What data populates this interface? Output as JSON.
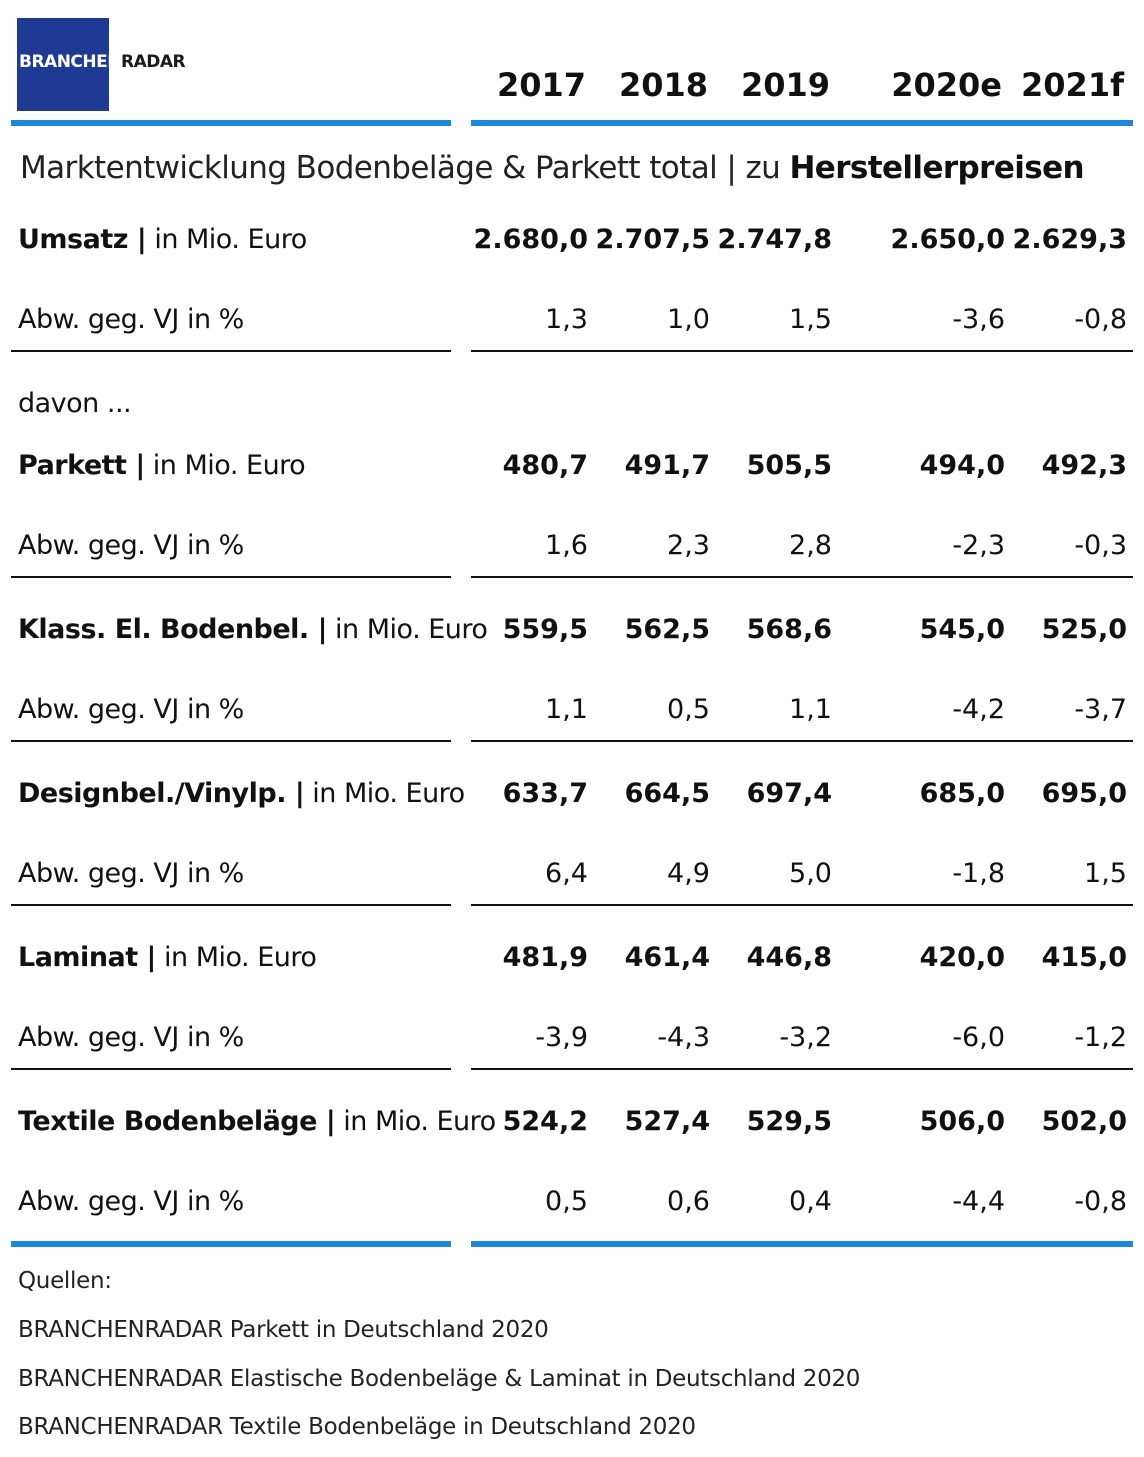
{
  "logo": {
    "text_part1": "BRANCHEN",
    "text_part2": "RADAR",
    "bg_color": "#1f3a93"
  },
  "columns": [
    "2017",
    "2018",
    "2019",
    "2020e",
    "2021f"
  ],
  "subtitle": {
    "text": "Marktentwicklung Bodenbeläge & Parkett total | zu ",
    "bold": "Herstellerpreisen"
  },
  "divider_color": "#1e88d8",
  "rows": [
    {
      "type": "value",
      "label_bold": "Umsatz |",
      "label_rest": " in Mio. Euro",
      "values": [
        "2.680,0",
        "2.707,5",
        "2.747,8",
        "2.650,0",
        "2.629,3"
      ]
    },
    {
      "type": "change",
      "label": "Abw. geg. VJ in %",
      "values": [
        "1,3",
        "1,0",
        "1,5",
        "-3,6",
        "-0,8"
      ]
    },
    {
      "type": "note",
      "label": "davon ..."
    },
    {
      "type": "value",
      "label_bold": "Parkett |",
      "label_rest": " in Mio. Euro",
      "values": [
        "480,7",
        "491,7",
        "505,5",
        "494,0",
        "492,3"
      ]
    },
    {
      "type": "change",
      "label": "Abw. geg. VJ in %",
      "values": [
        "1,6",
        "2,3",
        "2,8",
        "-2,3",
        "-0,3"
      ]
    },
    {
      "type": "value",
      "label_bold": "Klass. El. Bodenbel. |",
      "label_rest": " in Mio. Euro",
      "values": [
        "559,5",
        "562,5",
        "568,6",
        "545,0",
        "525,0"
      ]
    },
    {
      "type": "change",
      "label": "Abw. geg. VJ in %",
      "values": [
        "1,1",
        "0,5",
        "1,1",
        "-4,2",
        "-3,7"
      ]
    },
    {
      "type": "value",
      "label_bold": "Designbel./Vinylp. |",
      "label_rest": " in Mio. Euro",
      "values": [
        "633,7",
        "664,5",
        "697,4",
        "685,0",
        "695,0"
      ]
    },
    {
      "type": "change",
      "label": "Abw. geg. VJ in %",
      "values": [
        "6,4",
        "4,9",
        "5,0",
        "-1,8",
        "1,5"
      ]
    },
    {
      "type": "value",
      "label_bold": "Laminat |",
      "label_rest": " in Mio. Euro",
      "values": [
        "481,9",
        "461,4",
        "446,8",
        "420,0",
        "415,0"
      ]
    },
    {
      "type": "change",
      "label": "Abw. geg. VJ in %",
      "values": [
        "-3,9",
        "-4,3",
        "-3,2",
        "-6,0",
        "-1,2"
      ]
    },
    {
      "type": "value",
      "label_bold": "Textile Bodenbeläge |",
      "label_rest": " in Mio. Euro",
      "values": [
        "524,2",
        "527,4",
        "529,5",
        "506,0",
        "502,0"
      ]
    },
    {
      "type": "change",
      "label": "Abw. geg. VJ in %",
      "values": [
        "0,5",
        "0,6",
        "0,4",
        "-4,4",
        "-0,8"
      ]
    }
  ],
  "sources": {
    "heading": "Quellen:",
    "items": [
      "BRANCHENRADAR Parkett in Deutschland 2020",
      "BRANCHENRADAR Elastische Bodenbeläge & Laminat in Deutschland 2020",
      "BRANCHENRADAR Textile Bodenbeläge in Deutschland 2020"
    ]
  }
}
